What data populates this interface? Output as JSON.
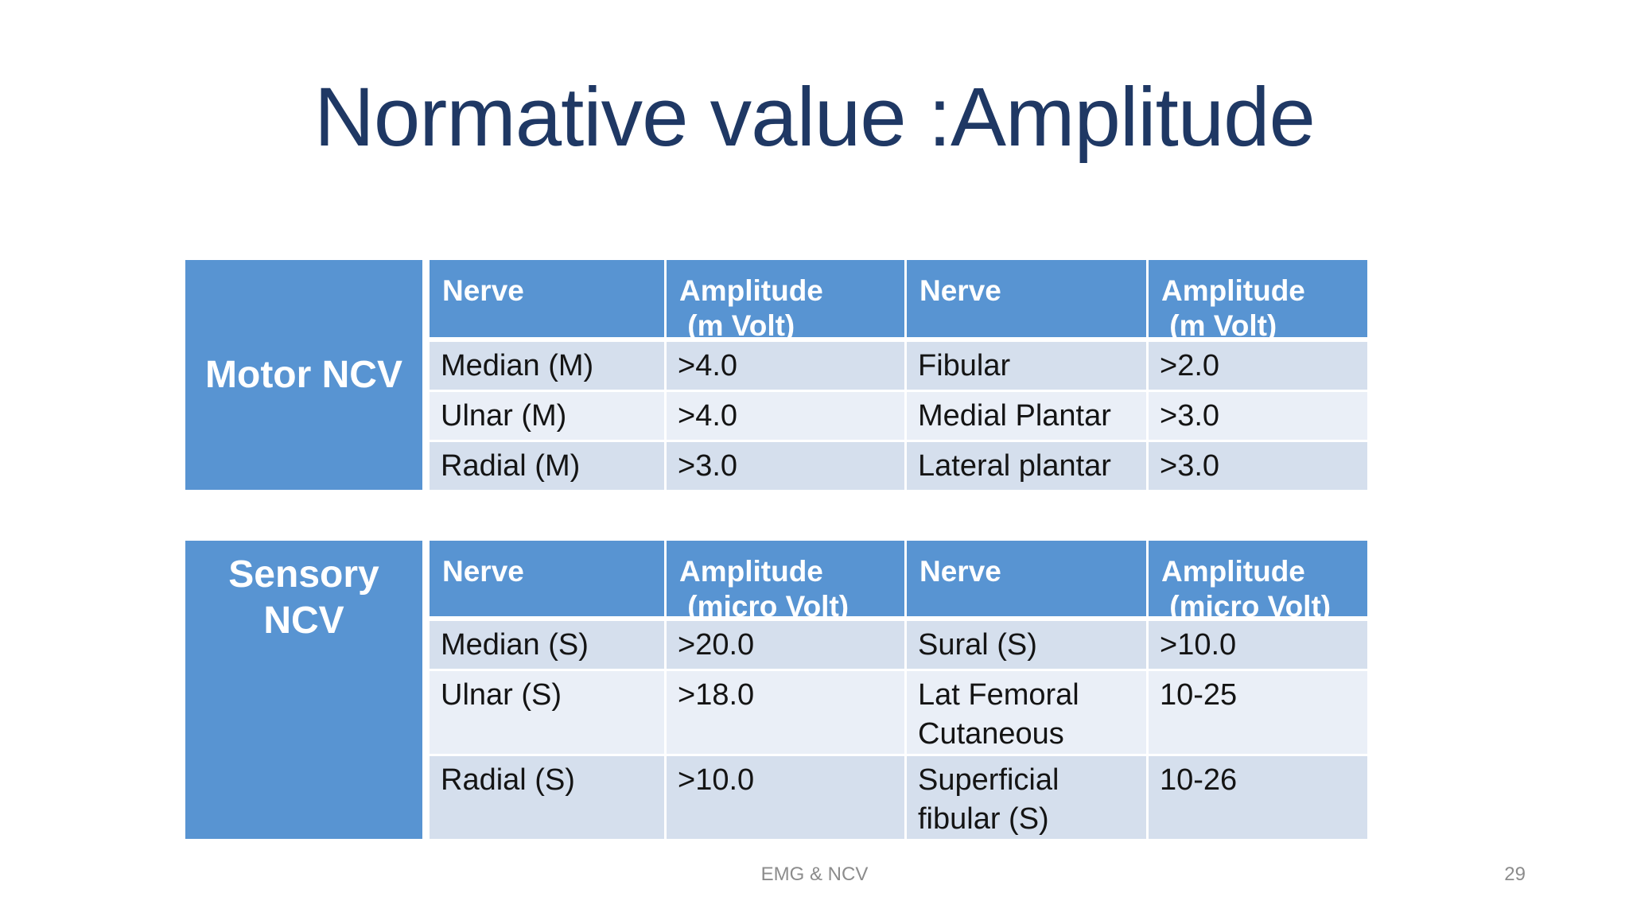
{
  "slide": {
    "title": "Normative value :Amplitude",
    "footer_text": "EMG & NCV",
    "slide_number": "29"
  },
  "colors": {
    "title_text": "#1F3864",
    "table_header_blue": "#5894D2",
    "band_row_dark": "#D5DFED",
    "band_row_light": "#EAEFF7",
    "header_text": "#FFFFFF",
    "body_text": "#141414",
    "footer_text": "#8C8C8C",
    "background": "#FFFFFF"
  },
  "tables": [
    {
      "label": "Motor NCV",
      "headers": [
        "Nerve",
        "Amplitude\n (m Volt)",
        "Nerve",
        "Amplitude\n (m Volt)"
      ],
      "rows": [
        [
          "Median (M)",
          ">4.0",
          "Fibular",
          ">2.0"
        ],
        [
          "Ulnar (M)",
          ">4.0",
          "Medial Plantar",
          ">3.0"
        ],
        [
          "Radial (M)",
          ">3.0",
          "Lateral plantar",
          ">3.0"
        ]
      ]
    },
    {
      "label": "Sensory NCV",
      "headers": [
        "Nerve",
        "Amplitude\n (micro Volt)",
        "Nerve",
        "Amplitude\n (micro Volt)"
      ],
      "rows": [
        [
          "Median (S)",
          ">20.0",
          "Sural (S)",
          ">10.0"
        ],
        [
          "Ulnar (S)",
          ">18.0",
          "Lat Femoral Cutaneous",
          "10-25"
        ],
        [
          "Radial (S)",
          ">10.0",
          "Superficial fibular (S)",
          "10-26"
        ]
      ]
    }
  ]
}
